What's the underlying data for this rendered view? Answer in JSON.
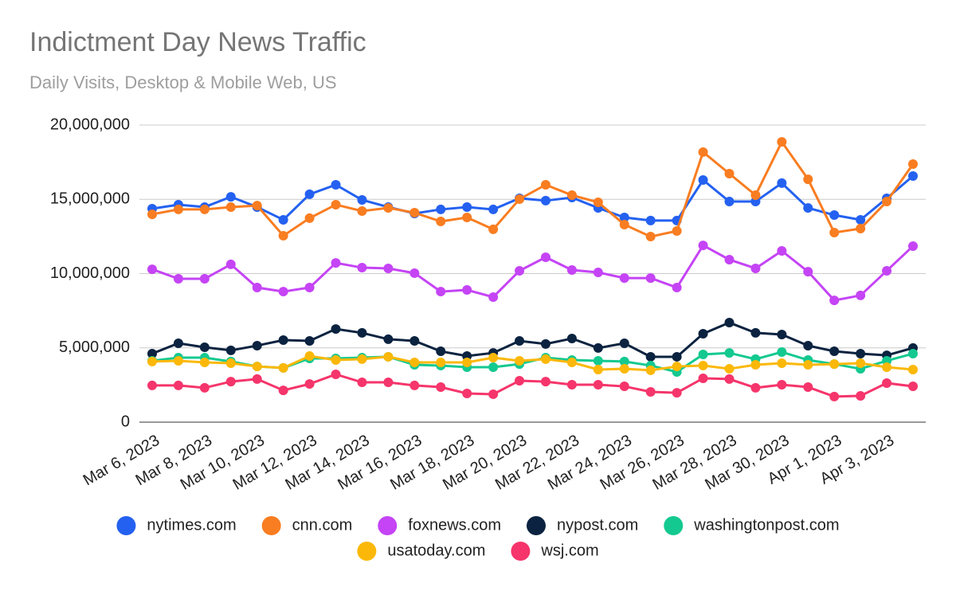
{
  "chart_data": {
    "type": "line",
    "title": "Indictment Day News Traffic",
    "subtitle": "Daily Visits, Desktop & Mobile Web, US",
    "categories": [
      "Mar 6, 2023",
      null,
      "Mar 8, 2023",
      null,
      "Mar 10, 2023",
      null,
      "Mar 12, 2023",
      null,
      "Mar 14, 2023",
      null,
      "Mar 16, 2023",
      null,
      "Mar 18, 2023",
      null,
      "Mar 20, 2023",
      null,
      "Mar 22, 2023",
      null,
      "Mar 24, 2023",
      null,
      "Mar 26, 2023",
      null,
      "Mar 28, 2023",
      null,
      "Mar 30, 2023",
      null,
      "Apr 1, 2023",
      null,
      "Apr 3, 2023",
      null
    ],
    "ylim": [
      0,
      20000000
    ],
    "yticks": [
      0,
      {
        "value": 5000000,
        "label": "5,000,000"
      },
      {
        "value": 10000000,
        "label": "10,000,000"
      },
      {
        "value": 15000000,
        "label": "15,000,000"
      },
      {
        "value": 20000000,
        "label": "20,000,000"
      }
    ],
    "grid": true,
    "legend": "bottom",
    "series": [
      {
        "name": "nytimes.com",
        "color": "#2461f0",
        "values": [
          14370000,
          14640000,
          14480000,
          15170000,
          14480000,
          13620000,
          15340000,
          15980000,
          14960000,
          14480000,
          14050000,
          14320000,
          14480000,
          14320000,
          15070000,
          14910000,
          15120000,
          14420000,
          13780000,
          13570000,
          13570000,
          16300000,
          14850000,
          14850000,
          16090000,
          14420000,
          13940000,
          13620000,
          15070000,
          16570000
        ]
      },
      {
        "name": "cnn.com",
        "color": "#f97d21",
        "values": [
          13990000,
          14320000,
          14320000,
          14480000,
          14580000,
          12550000,
          13730000,
          14640000,
          14210000,
          14420000,
          14100000,
          13510000,
          13780000,
          12980000,
          15010000,
          15980000,
          15280000,
          14800000,
          13300000,
          12490000,
          12870000,
          18180000,
          16730000,
          15280000,
          18870000,
          16350000,
          12760000,
          13030000,
          14850000,
          17370000
        ]
      },
      {
        "name": "foxnews.com",
        "color": "#c544f5",
        "values": [
          10290000,
          9650000,
          9650000,
          10620000,
          9060000,
          8790000,
          9060000,
          10720000,
          10400000,
          10350000,
          10030000,
          8790000,
          8900000,
          8420000,
          10190000,
          11100000,
          10240000,
          10080000,
          9700000,
          9700000,
          9060000,
          11900000,
          10940000,
          10350000,
          11530000,
          10130000,
          8200000,
          8530000,
          10190000,
          11850000
        ]
      },
      {
        "name": "nypost.com",
        "color": "#0b2340",
        "values": [
          4610000,
          5310000,
          5040000,
          4830000,
          5150000,
          5520000,
          5470000,
          6270000,
          6010000,
          5580000,
          5470000,
          4770000,
          4450000,
          4660000,
          5470000,
          5260000,
          5630000,
          4990000,
          5310000,
          4400000,
          4400000,
          5950000,
          6700000,
          6010000,
          5900000,
          5150000,
          4770000,
          4610000,
          4500000,
          4990000
        ]
      },
      {
        "name": "washingtonpost.com",
        "color": "#14c990",
        "values": [
          4130000,
          4340000,
          4340000,
          4080000,
          3750000,
          3650000,
          4290000,
          4290000,
          4340000,
          4400000,
          3860000,
          3810000,
          3700000,
          3700000,
          3910000,
          4340000,
          4180000,
          4130000,
          4080000,
          3810000,
          3380000,
          4560000,
          4660000,
          4240000,
          4720000,
          4180000,
          3910000,
          3590000,
          4130000,
          4610000
        ]
      },
      {
        "name": "usatoday.com",
        "color": "#fbb809",
        "values": [
          4080000,
          4130000,
          4020000,
          3970000,
          3750000,
          3650000,
          4450000,
          4180000,
          4240000,
          4400000,
          4020000,
          4020000,
          4020000,
          4340000,
          4130000,
          4240000,
          4020000,
          3540000,
          3590000,
          3490000,
          3750000,
          3810000,
          3590000,
          3860000,
          3970000,
          3860000,
          3910000,
          3970000,
          3700000,
          3540000
        ]
      },
      {
        "name": "wsj.com",
        "color": "#f5356b",
        "values": [
          2470000,
          2470000,
          2310000,
          2730000,
          2900000,
          2140000,
          2570000,
          3220000,
          2680000,
          2680000,
          2470000,
          2360000,
          1930000,
          1880000,
          2790000,
          2730000,
          2520000,
          2520000,
          2410000,
          2040000,
          1980000,
          2950000,
          2900000,
          2310000,
          2520000,
          2360000,
          1720000,
          1770000,
          2630000,
          2410000
        ]
      }
    ]
  }
}
